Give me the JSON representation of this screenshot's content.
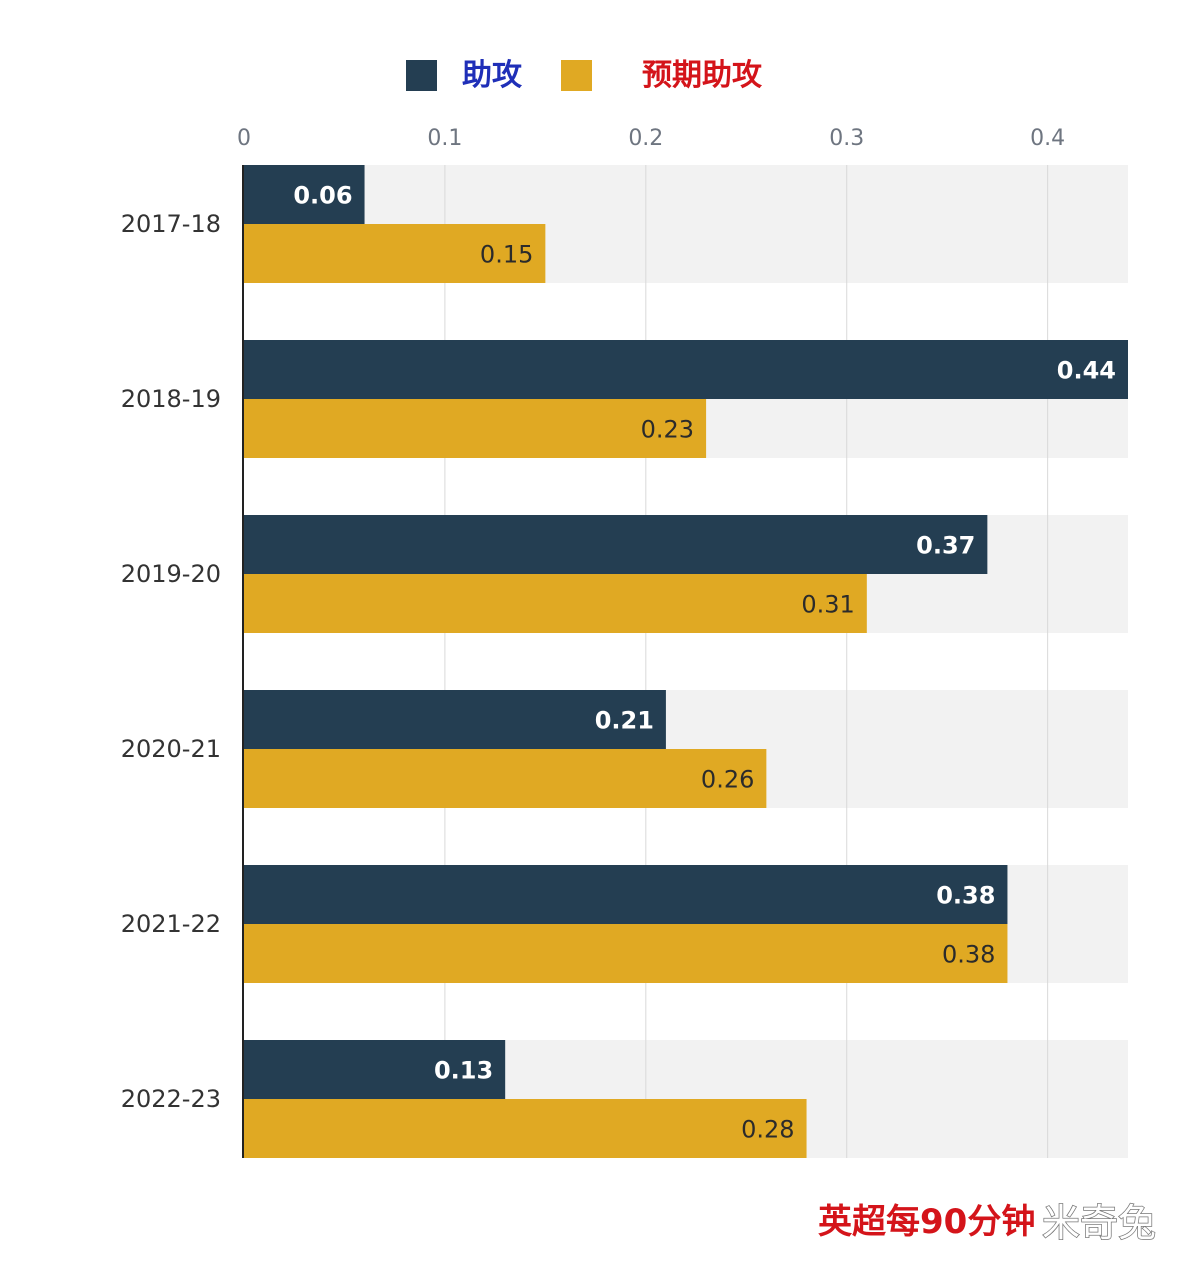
{
  "chart_data": {
    "type": "bar",
    "orientation": "horizontal",
    "categories": [
      "2017-18",
      "2018-19",
      "2019-20",
      "2020-21",
      "2021-22",
      "2022-23"
    ],
    "series": [
      {
        "name": "助攻",
        "color": "#243e52",
        "values": [
          0.06,
          0.44,
          0.37,
          0.21,
          0.38,
          0.13
        ],
        "labels": [
          "0.06",
          "0.44",
          "0.37",
          "0.21",
          "0.38",
          "0.13"
        ]
      },
      {
        "name": "预期助攻",
        "color": "#e0a923",
        "values": [
          0.15,
          0.23,
          0.31,
          0.26,
          0.38,
          0.28
        ],
        "labels": [
          "0.15",
          "0.23",
          "0.31",
          "0.26",
          "0.38",
          "0.28"
        ]
      }
    ],
    "xlim": [
      0,
      0.44
    ],
    "ticks": [
      0,
      0.1,
      0.2,
      0.3,
      0.4
    ],
    "tick_labels": [
      "0",
      "0.1",
      "0.2",
      "0.3",
      "0.4"
    ],
    "grid": true,
    "legend_position": "top-center",
    "axis_position": "top"
  },
  "legend": {
    "series1_label": "助攻",
    "series1_label_color": "#1f2fb8",
    "series2_label": "预期助攻",
    "series2_label_color": "#d4141a"
  },
  "footnote": {
    "text": "英超每90分钟",
    "color": "#d4141a"
  },
  "watermark": {
    "text": "米奇兔"
  },
  "colors": {
    "band_background": "#f2f2f2",
    "grid_line": "#d9d9d9",
    "axis_line": "#222222"
  }
}
